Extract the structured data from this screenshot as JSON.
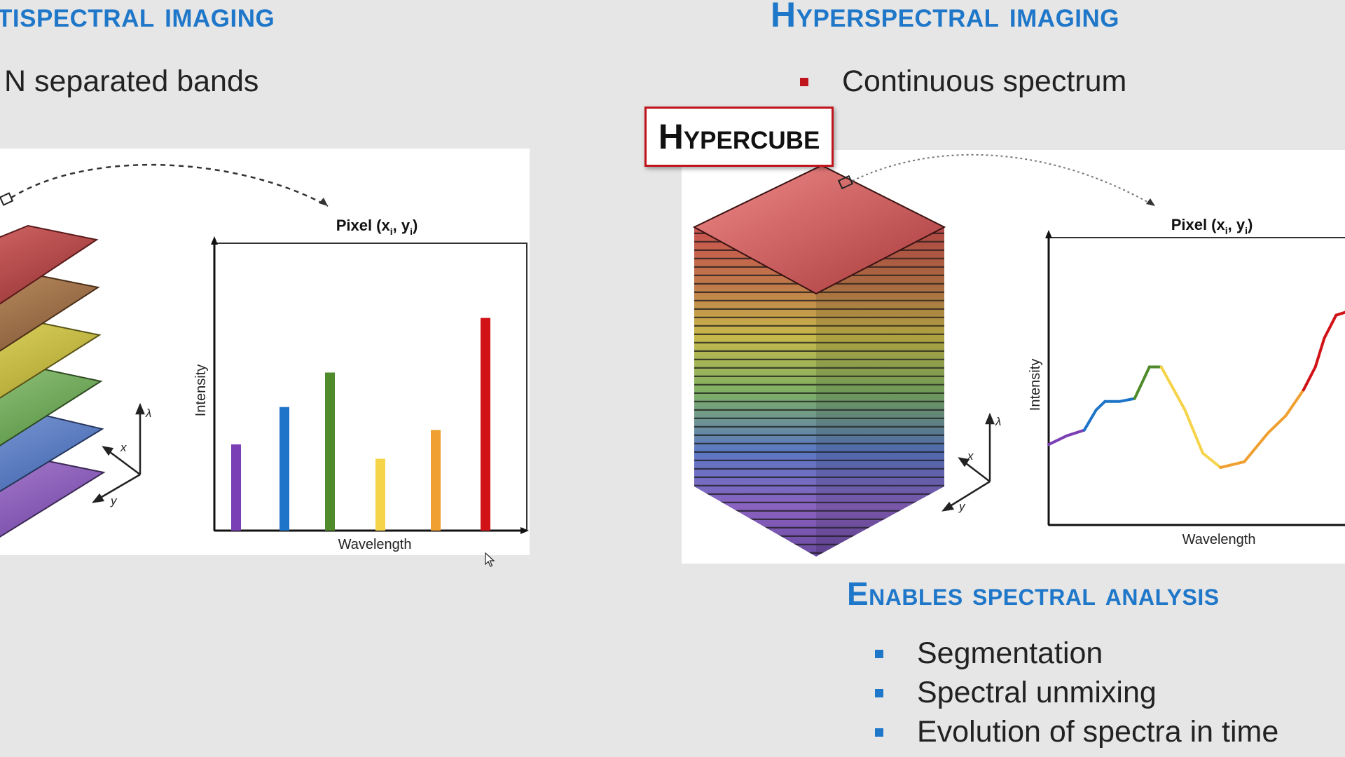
{
  "left": {
    "heading": "tispectral imaging",
    "bullet": "N separated bands",
    "chart": {
      "title": "Pixel (x",
      "title_sub": "i",
      "title_mid": ", y",
      "title_end": ")",
      "xlabel": "Wavelength",
      "ylabel": "Intensity"
    }
  },
  "right": {
    "heading": "Hyperspectral imaging",
    "bullet": "Continuous spectrum",
    "hypercube_label": "Hypercube",
    "chart": {
      "title": "Pixel (x",
      "title_sub": "i",
      "title_mid": ", y",
      "title_end": ")",
      "xlabel": "Wavelength",
      "ylabel": "Intensity"
    },
    "analysis_heading": "Enables spectral analysis",
    "analysis_items": [
      "Segmentation",
      "Spectral unmixing",
      "Evolution of spectra in time"
    ]
  },
  "axes_labels": {
    "x": "x",
    "y": "y",
    "lambda": "λ"
  },
  "colors": {
    "heading": "#1f77c9",
    "bullet_red": "#c0141c",
    "bullet_blue": "#1f77c9",
    "violet": "#7b3fb5",
    "blue": "#1e74c8",
    "green": "#4f8a2b",
    "yellow": "#f5d44a",
    "orange": "#f0a030",
    "red": "#d11217"
  },
  "chart_data": [
    {
      "type": "bar",
      "title": "Pixel (xi, yi)",
      "xlabel": "Wavelength",
      "ylabel": "Intensity",
      "categories": [
        "violet",
        "blue",
        "green",
        "yellow",
        "orange",
        "red"
      ],
      "values": [
        0.3,
        0.43,
        0.55,
        0.25,
        0.35,
        0.74
      ],
      "ylim": [
        0,
        1
      ]
    },
    {
      "type": "line",
      "title": "Pixel (xi, yi)",
      "xlabel": "Wavelength",
      "ylabel": "Intensity",
      "x": [
        0,
        0.06,
        0.12,
        0.16,
        0.19,
        0.24,
        0.29,
        0.34,
        0.38,
        0.46,
        0.52,
        0.58,
        0.66,
        0.74,
        0.8,
        0.86,
        0.9,
        0.93,
        0.97,
        1.0
      ],
      "y": [
        0.28,
        0.31,
        0.33,
        0.4,
        0.43,
        0.43,
        0.44,
        0.55,
        0.55,
        0.4,
        0.25,
        0.2,
        0.22,
        0.32,
        0.38,
        0.47,
        0.55,
        0.65,
        0.73,
        0.74
      ],
      "ylim": [
        0,
        1
      ],
      "xlim": [
        0,
        1
      ]
    }
  ]
}
